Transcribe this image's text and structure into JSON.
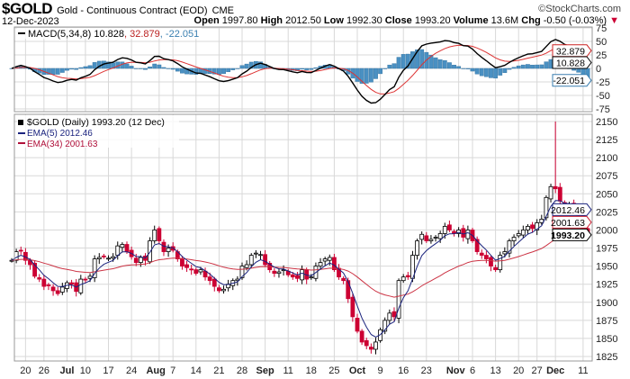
{
  "header": {
    "symbol": "$GOLD",
    "name": "Gold - Continuous Contract (EOD)",
    "exchange": "CME",
    "copyright": "©StockCharts.com",
    "date": "12-Dec-2023",
    "open_label": "Open",
    "open": "1997.80",
    "high_label": "High",
    "high": "2012.50",
    "low_label": "Low",
    "low": "1992.30",
    "close_label": "Close",
    "close": "1993.20",
    "volume_label": "Volume",
    "volume": "13.6M",
    "chg_label": "Chg",
    "chg": "-0.50 (-0.03%)",
    "chg_icon": "down-triangle-icon"
  },
  "colors": {
    "up": "#ffffff",
    "down": "#cc0033",
    "ema5": "#1a237e",
    "ema34": "#cc3344",
    "macd": "#000000",
    "signal": "#dd3333",
    "hist": "#4a90c2"
  },
  "chart_data": [
    {
      "type": "line",
      "title": "MACD(5,34,8)",
      "legend": {
        "label": "MACD(5,34,8)",
        "macd": "10.828",
        "signal": "32.879",
        "hist": "-22.051"
      },
      "right_labels": {
        "macd": "10.828",
        "signal": "32.879",
        "hist": "-22.051"
      },
      "yticks": [
        "75",
        "50",
        "25",
        "0",
        "-25",
        "-50",
        "-75"
      ],
      "ylim": [
        -80,
        80
      ]
    },
    {
      "type": "candlestick",
      "title": "$GOLD (Daily) 1993.20 (12 Dec)",
      "legend": {
        "price": "$GOLD (Daily) 1993.20 (12 Dec)",
        "ema5": "EMA(5) 2012.46",
        "ema34": "EMA(34) 2001.63"
      },
      "right_labels": {
        "ema5": "2012.46",
        "ema34": "2001.63",
        "close": "1993.20"
      },
      "yticks": [
        "2150",
        "2125",
        "2100",
        "2075",
        "2050",
        "2025",
        "2000",
        "1975",
        "1950",
        "1925",
        "1900",
        "1875",
        "1850",
        "1825"
      ],
      "ylim": [
        1816,
        2158
      ],
      "closes": [
        1958,
        1970,
        1971,
        1958,
        1952,
        1936,
        1932,
        1922,
        1923,
        1916,
        1912,
        1921,
        1927,
        1925,
        1915,
        1932,
        1931,
        1936,
        1960,
        1962,
        1963,
        1961,
        1963,
        1978,
        1980,
        1970,
        1963,
        1955,
        1962,
        1958,
        1985,
        2000,
        1985,
        1970,
        1975,
        1972,
        1960,
        1950,
        1948,
        1945,
        1940,
        1945,
        1935,
        1930,
        1922,
        1916,
        1918,
        1925,
        1930,
        1932,
        1950,
        1952,
        1965,
        1968,
        1966,
        1952,
        1945,
        1940,
        1942,
        1945,
        1938,
        1935,
        1933,
        1945,
        1932,
        1935,
        1950,
        1955,
        1960,
        1962,
        1945,
        1935,
        1930,
        1905,
        1880,
        1860,
        1845,
        1840,
        1835,
        1845,
        1862,
        1875,
        1885,
        1880,
        1930,
        1935,
        1935,
        1965,
        1985,
        1994,
        1985,
        1987,
        1990,
        1995,
        2005,
        2000,
        1995,
        2000,
        1990,
        2000,
        1985,
        1970,
        1965,
        1960,
        1950,
        1945,
        1965,
        1970,
        1985,
        1990,
        1995,
        2000,
        2005,
        2002,
        2010,
        2015,
        2045,
        2060,
        2057,
        2040,
        2030,
        2035,
        2028,
        2020,
        2000,
        1993
      ],
      "spike_high": {
        "index": 118,
        "value": 2150
      },
      "xticks": [
        {
          "label": "20",
          "i": 3,
          "bold": false
        },
        {
          "label": "26",
          "i": 7,
          "bold": false
        },
        {
          "label": "Jul",
          "i": 12,
          "bold": true
        },
        {
          "label": "10",
          "i": 16,
          "bold": false
        },
        {
          "label": "17",
          "i": 21,
          "bold": false
        },
        {
          "label": "24",
          "i": 26,
          "bold": false
        },
        {
          "label": "Aug",
          "i": 32,
          "bold": true
        },
        {
          "label": "7",
          "i": 35,
          "bold": false
        },
        {
          "label": "14",
          "i": 40,
          "bold": false
        },
        {
          "label": "21",
          "i": 45,
          "bold": false
        },
        {
          "label": "28",
          "i": 50,
          "bold": false
        },
        {
          "label": "Sep",
          "i": 55,
          "bold": true
        },
        {
          "label": "11",
          "i": 60,
          "bold": false
        },
        {
          "label": "18",
          "i": 65,
          "bold": false
        },
        {
          "label": "25",
          "i": 70,
          "bold": false
        },
        {
          "label": "Oct",
          "i": 75,
          "bold": true
        },
        {
          "label": "9",
          "i": 80,
          "bold": false
        },
        {
          "label": "16",
          "i": 85,
          "bold": false
        },
        {
          "label": "23",
          "i": 90,
          "bold": false
        },
        {
          "label": "Nov",
          "i": 97,
          "bold": true
        },
        {
          "label": "6",
          "i": 100,
          "bold": false
        },
        {
          "label": "13",
          "i": 105,
          "bold": false
        },
        {
          "label": "20",
          "i": 110,
          "bold": false
        },
        {
          "label": "27",
          "i": 114,
          "bold": false
        },
        {
          "label": "Dec",
          "i": 118,
          "bold": true
        },
        {
          "label": "11",
          "i": 124,
          "bold": false
        }
      ]
    }
  ]
}
